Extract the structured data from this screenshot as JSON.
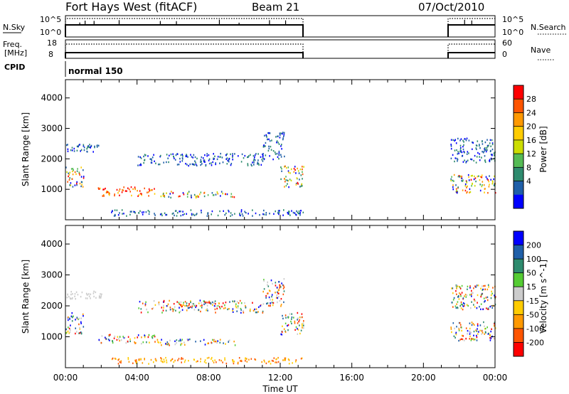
{
  "header": {
    "title": "Fort Hays West (fitACF)",
    "beam": "Beam 21",
    "date": "07/Oct/2010"
  },
  "panels": {
    "nsky_label": "N.Sky",
    "nsky_top_tick": "10^5",
    "nsky_bottom_tick": "10^0",
    "nsearch_label": "N.Search",
    "nsearch_top_tick": "10^5",
    "nsearch_bottom_tick": "10^0",
    "freq_label": "Freq.",
    "freq_unit": "[MHz]",
    "freq_top_tick": "18",
    "freq_bottom_tick": "8",
    "nave_label": "Nave",
    "nave_top_tick": "60",
    "nave_bottom_tick": "0",
    "cpid_label": "CPID",
    "cpid_value": "normal 150"
  },
  "colorbars": {
    "power": {
      "label": "Power [dB]",
      "ticks": [
        "28",
        "24",
        "20",
        "16",
        "12",
        "8",
        "4"
      ],
      "colors": [
        "#ff0000",
        "#ff5500",
        "#ff9900",
        "#ffcc00",
        "#ccdd00",
        "#55bb55",
        "#2e8b6e",
        "#1f5fa8",
        "#0000ff"
      ]
    },
    "velocity": {
      "label": "Velocity [m s^-1]",
      "ticks": [
        "200",
        "100",
        "50",
        "15",
        "-15",
        "-50",
        "-100",
        "-200"
      ],
      "colors": [
        "#0000ff",
        "#1f5fa8",
        "#2e8b6e",
        "#55cc33",
        "#cccccc",
        "#ffcc00",
        "#ff9900",
        "#ff5500",
        "#ff0000"
      ]
    }
  },
  "chart_data": [
    {
      "type": "heatmap",
      "name": "Power",
      "ylabel": "Slant Range [km]",
      "ylim": [
        0,
        4600
      ],
      "yticks": [
        "4000",
        "3000",
        "2000",
        "1000"
      ],
      "xlim_hours": [
        0,
        24
      ],
      "xticks": [
        "00:00",
        "04:00",
        "08:00",
        "12:00",
        "16:00",
        "20:00",
        "00:00"
      ],
      "echo_regions": [
        {
          "t": [
            0.0,
            1.0
          ],
          "r": [
            1100,
            1800
          ],
          "level": "mixed-high"
        },
        {
          "t": [
            0.0,
            2.0
          ],
          "r": [
            2250,
            2500
          ],
          "level": "low"
        },
        {
          "t": [
            1.8,
            5.0
          ],
          "r": [
            800,
            1100
          ],
          "level": "high"
        },
        {
          "t": [
            5.0,
            9.5
          ],
          "r": [
            750,
            950
          ],
          "level": "mixed"
        },
        {
          "t": [
            2.5,
            13.3
          ],
          "r": [
            150,
            350
          ],
          "level": "low"
        },
        {
          "t": [
            4.0,
            11.0
          ],
          "r": [
            1800,
            2200
          ],
          "level": "low"
        },
        {
          "t": [
            11.0,
            12.2
          ],
          "r": [
            2000,
            2900
          ],
          "level": "low"
        },
        {
          "t": [
            12.0,
            13.3
          ],
          "r": [
            1100,
            1800
          ],
          "level": "mixed"
        },
        {
          "t": [
            21.5,
            24.0
          ],
          "r": [
            900,
            1500
          ],
          "level": "mixed-high"
        },
        {
          "t": [
            21.5,
            24.0
          ],
          "r": [
            1900,
            2700
          ],
          "level": "low"
        }
      ]
    },
    {
      "type": "heatmap",
      "name": "Velocity",
      "ylabel": "Slant Range [km]",
      "ylim": [
        0,
        4600
      ],
      "yticks": [
        "4000",
        "3000",
        "2000",
        "1000"
      ],
      "xlim_hours": [
        0,
        24
      ],
      "xticks": [
        "00:00",
        "04:00",
        "08:00",
        "12:00",
        "16:00",
        "20:00",
        "00:00"
      ],
      "xlabel": "Time UT",
      "echo_regions": [
        {
          "t": [
            0.0,
            1.0
          ],
          "r": [
            1100,
            1800
          ],
          "level": "mixed"
        },
        {
          "t": [
            0.0,
            2.0
          ],
          "r": [
            2250,
            2500
          ],
          "level": "near-zero"
        },
        {
          "t": [
            1.8,
            5.0
          ],
          "r": [
            800,
            1100
          ],
          "level": "mixed"
        },
        {
          "t": [
            5.0,
            9.5
          ],
          "r": [
            750,
            950
          ],
          "level": "mixed"
        },
        {
          "t": [
            2.5,
            13.3
          ],
          "r": [
            150,
            350
          ],
          "level": "negative"
        },
        {
          "t": [
            4.0,
            11.0
          ],
          "r": [
            1800,
            2200
          ],
          "level": "mixed"
        },
        {
          "t": [
            11.0,
            12.2
          ],
          "r": [
            2000,
            2900
          ],
          "level": "mixed"
        },
        {
          "t": [
            12.0,
            13.3
          ],
          "r": [
            1100,
            1800
          ],
          "level": "mixed"
        },
        {
          "t": [
            21.5,
            24.0
          ],
          "r": [
            900,
            1500
          ],
          "level": "mixed"
        },
        {
          "t": [
            21.5,
            24.0
          ],
          "r": [
            1900,
            2700
          ],
          "level": "mixed"
        }
      ]
    }
  ]
}
